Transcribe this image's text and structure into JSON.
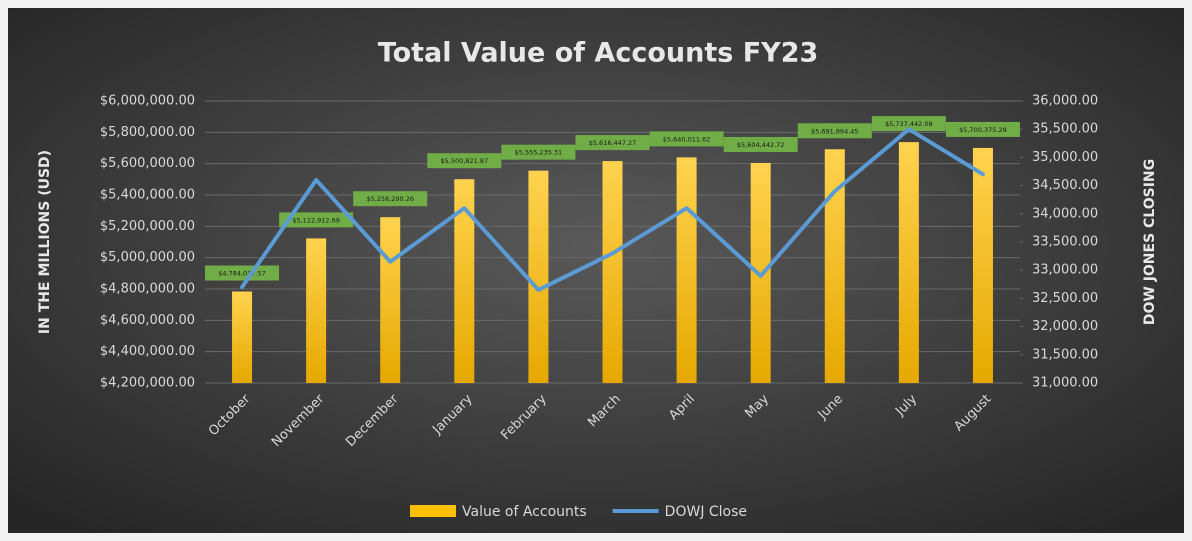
{
  "chart_data": {
    "type": "bar_line",
    "title": "Total Value of Accounts FY23",
    "ylabel": "IN THE MILLIONS (USD)",
    "y2label": "DOW JONES CLOSING",
    "categories": [
      "October",
      "November",
      "December",
      "January",
      "February",
      "March",
      "April",
      "May",
      "June",
      "July",
      "August"
    ],
    "series": [
      {
        "name": "Value of Accounts",
        "type": "bar",
        "color": "#ffc000",
        "values": [
          4784037.57,
          5122912.69,
          5258290.26,
          5500821.87,
          5555235.31,
          5616447.27,
          5640011.62,
          5604442.72,
          5691994.45,
          5737442.08,
          5700375.28
        ],
        "value_labels": [
          "$4,784,037.57",
          "$5,122,912.69",
          "$5,258,290.26",
          "$5,500,821.87",
          "$5,555,235.31",
          "$5,616,447.27",
          "$5,640,011.62",
          "$5,604,442.72",
          "$5,691,994.45",
          "$5,737,442.08",
          "$5,700,375.28"
        ]
      },
      {
        "name": "DOWJ Close",
        "type": "line",
        "color": "#5b9bd5",
        "axis": "y2",
        "values": [
          32700,
          34600,
          33150,
          34100,
          32650,
          33300,
          34100,
          32900,
          34400,
          35500,
          34700
        ]
      }
    ],
    "ylim": [
      4200000,
      6000000
    ],
    "yticks": [
      {
        "value": 4200000,
        "label": "$4,200,000.00"
      },
      {
        "value": 4400000,
        "label": "$4,400,000.00"
      },
      {
        "value": 4600000,
        "label": "$4,600,000.00"
      },
      {
        "value": 4800000,
        "label": "$4,800,000.00"
      },
      {
        "value": 5000000,
        "label": "$5,000,000.00"
      },
      {
        "value": 5200000,
        "label": "$5,200,000.00"
      },
      {
        "value": 5400000,
        "label": "$5,400,000.00"
      },
      {
        "value": 5600000,
        "label": "$5,600,000.00"
      },
      {
        "value": 5800000,
        "label": "$5,800,000.00"
      },
      {
        "value": 6000000,
        "label": "$6,000,000.00"
      }
    ],
    "y2lim": [
      31000,
      36000
    ],
    "y2ticks": [
      {
        "value": 31000,
        "label": "31,000.00"
      },
      {
        "value": 31500,
        "label": "31,500.00"
      },
      {
        "value": 32000,
        "label": "32,000.00"
      },
      {
        "value": 32500,
        "label": "32,500.00"
      },
      {
        "value": 33000,
        "label": "33,000.00"
      },
      {
        "value": 33500,
        "label": "33,500.00"
      },
      {
        "value": 34000,
        "label": "34,000.00"
      },
      {
        "value": 34500,
        "label": "34,500.00"
      },
      {
        "value": 35000,
        "label": "35,000.00"
      },
      {
        "value": 35500,
        "label": "35,500.00"
      },
      {
        "value": 36000,
        "label": "36,000.00"
      }
    ],
    "grid": true,
    "legend": "bottom"
  }
}
